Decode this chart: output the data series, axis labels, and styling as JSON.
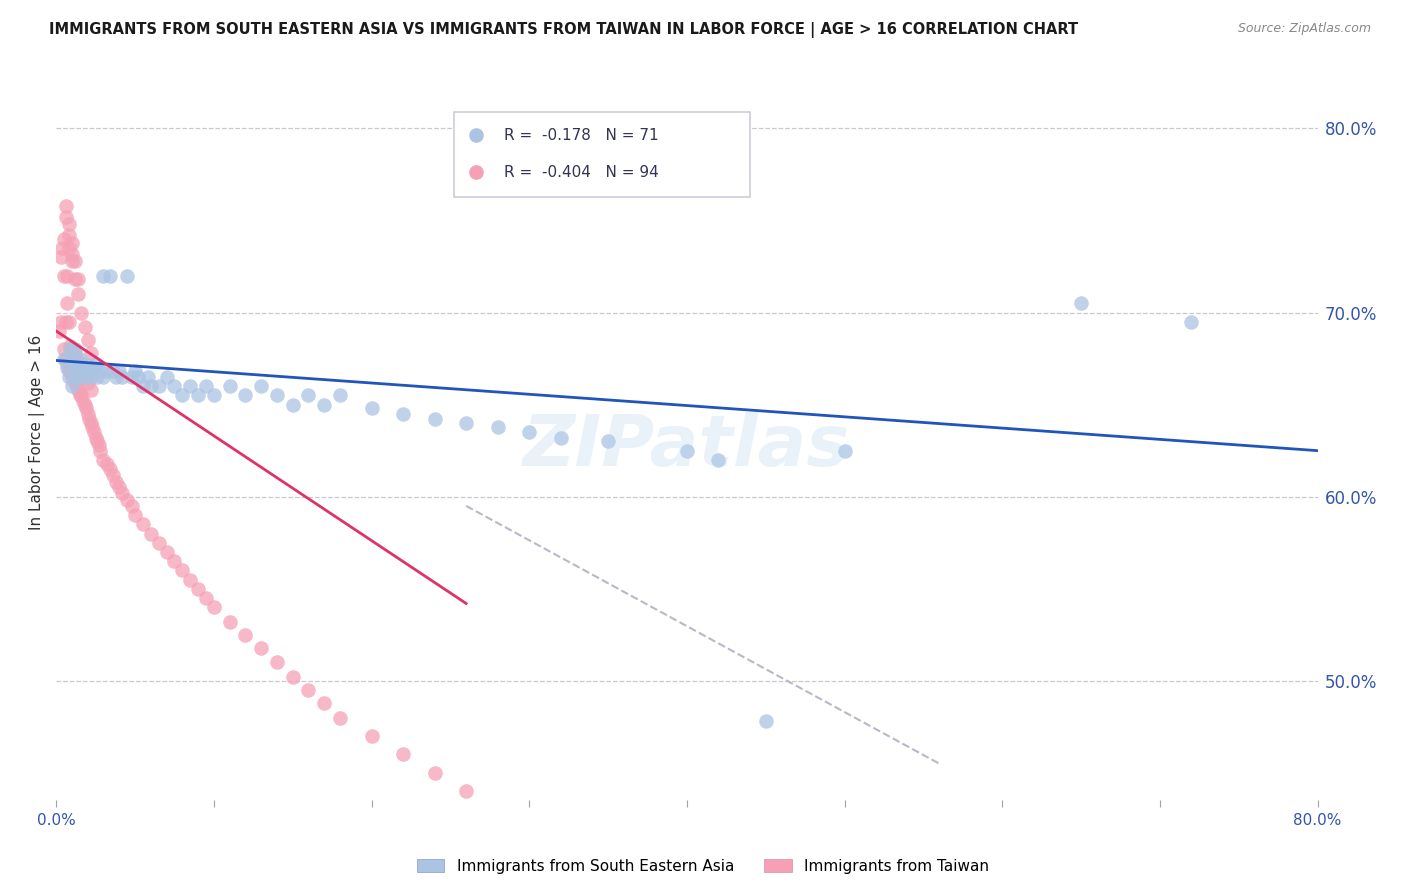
{
  "title": "IMMIGRANTS FROM SOUTH EASTERN ASIA VS IMMIGRANTS FROM TAIWAN IN LABOR FORCE | AGE > 16 CORRELATION CHART",
  "source": "Source: ZipAtlas.com",
  "ylabel": "In Labor Force | Age > 16",
  "right_yticks": [
    "80.0%",
    "70.0%",
    "60.0%",
    "50.0%"
  ],
  "right_ytick_vals": [
    0.8,
    0.7,
    0.6,
    0.5
  ],
  "xlim": [
    0.0,
    0.8
  ],
  "ylim": [
    0.435,
    0.835
  ],
  "legend_blue_r": "-0.178",
  "legend_blue_n": "71",
  "legend_pink_r": "-0.404",
  "legend_pink_n": "94",
  "blue_color": "#aac4e2",
  "pink_color": "#f5a0b5",
  "line_blue": "#2255bb",
  "line_pink": "#dd3366",
  "line_gray_dashed": "#b8b8c8",
  "watermark": "ZIPatlas",
  "blue_scatter_x": [
    0.005,
    0.007,
    0.008,
    0.009,
    0.01,
    0.01,
    0.011,
    0.012,
    0.012,
    0.013,
    0.014,
    0.015,
    0.015,
    0.016,
    0.017,
    0.018,
    0.019,
    0.02,
    0.021,
    0.022,
    0.023,
    0.024,
    0.025,
    0.026,
    0.028,
    0.03,
    0.03,
    0.032,
    0.034,
    0.036,
    0.038,
    0.04,
    0.042,
    0.045,
    0.048,
    0.05,
    0.052,
    0.055,
    0.058,
    0.06,
    0.065,
    0.07,
    0.075,
    0.08,
    0.085,
    0.09,
    0.095,
    0.1,
    0.11,
    0.12,
    0.13,
    0.14,
    0.15,
    0.16,
    0.17,
    0.18,
    0.2,
    0.22,
    0.24,
    0.26,
    0.28,
    0.3,
    0.32,
    0.35,
    0.38,
    0.4,
    0.42,
    0.45,
    0.5,
    0.65,
    0.72
  ],
  "blue_scatter_y": [
    0.675,
    0.67,
    0.665,
    0.68,
    0.675,
    0.66,
    0.67,
    0.665,
    0.68,
    0.668,
    0.672,
    0.668,
    0.675,
    0.665,
    0.67,
    0.665,
    0.672,
    0.67,
    0.668,
    0.665,
    0.67,
    0.668,
    0.672,
    0.665,
    0.668,
    0.72,
    0.665,
    0.668,
    0.72,
    0.668,
    0.665,
    0.668,
    0.665,
    0.72,
    0.665,
    0.668,
    0.665,
    0.66,
    0.665,
    0.66,
    0.66,
    0.665,
    0.66,
    0.655,
    0.66,
    0.655,
    0.66,
    0.655,
    0.66,
    0.655,
    0.66,
    0.655,
    0.65,
    0.655,
    0.65,
    0.655,
    0.648,
    0.645,
    0.642,
    0.64,
    0.638,
    0.635,
    0.632,
    0.63,
    0.78,
    0.625,
    0.62,
    0.478,
    0.625,
    0.705,
    0.695
  ],
  "pink_scatter_x": [
    0.002,
    0.003,
    0.003,
    0.004,
    0.005,
    0.005,
    0.006,
    0.006,
    0.007,
    0.007,
    0.008,
    0.008,
    0.009,
    0.009,
    0.01,
    0.01,
    0.011,
    0.011,
    0.012,
    0.012,
    0.013,
    0.013,
    0.014,
    0.014,
    0.015,
    0.015,
    0.016,
    0.016,
    0.017,
    0.018,
    0.018,
    0.019,
    0.02,
    0.02,
    0.021,
    0.022,
    0.022,
    0.023,
    0.024,
    0.025,
    0.026,
    0.027,
    0.028,
    0.03,
    0.032,
    0.034,
    0.036,
    0.038,
    0.04,
    0.042,
    0.045,
    0.048,
    0.05,
    0.055,
    0.06,
    0.065,
    0.07,
    0.075,
    0.08,
    0.085,
    0.09,
    0.095,
    0.1,
    0.11,
    0.12,
    0.13,
    0.14,
    0.15,
    0.16,
    0.17,
    0.18,
    0.2,
    0.22,
    0.24,
    0.26,
    0.005,
    0.007,
    0.008,
    0.01,
    0.012,
    0.014,
    0.016,
    0.018,
    0.02,
    0.022,
    0.024,
    0.006,
    0.008,
    0.01,
    0.012,
    0.014,
    0.006,
    0.008,
    0.01
  ],
  "pink_scatter_y": [
    0.69,
    0.73,
    0.695,
    0.735,
    0.68,
    0.72,
    0.675,
    0.695,
    0.672,
    0.705,
    0.668,
    0.695,
    0.668,
    0.682,
    0.665,
    0.68,
    0.665,
    0.675,
    0.662,
    0.678,
    0.66,
    0.675,
    0.658,
    0.672,
    0.655,
    0.67,
    0.655,
    0.668,
    0.652,
    0.65,
    0.665,
    0.648,
    0.645,
    0.662,
    0.642,
    0.64,
    0.658,
    0.638,
    0.635,
    0.632,
    0.63,
    0.628,
    0.625,
    0.62,
    0.618,
    0.615,
    0.612,
    0.608,
    0.605,
    0.602,
    0.598,
    0.595,
    0.59,
    0.585,
    0.58,
    0.575,
    0.57,
    0.565,
    0.56,
    0.555,
    0.55,
    0.545,
    0.54,
    0.532,
    0.525,
    0.518,
    0.51,
    0.502,
    0.495,
    0.488,
    0.48,
    0.47,
    0.46,
    0.45,
    0.44,
    0.74,
    0.72,
    0.735,
    0.728,
    0.718,
    0.71,
    0.7,
    0.692,
    0.685,
    0.678,
    0.67,
    0.758,
    0.748,
    0.738,
    0.728,
    0.718,
    0.752,
    0.742,
    0.732
  ],
  "blue_trend_x": [
    0.0,
    0.8
  ],
  "blue_trend_y": [
    0.674,
    0.625
  ],
  "pink_trend_x": [
    0.0,
    0.26
  ],
  "pink_trend_y": [
    0.69,
    0.542
  ],
  "gray_trend_x": [
    0.26,
    0.56
  ],
  "gray_trend_y": [
    0.595,
    0.455
  ]
}
